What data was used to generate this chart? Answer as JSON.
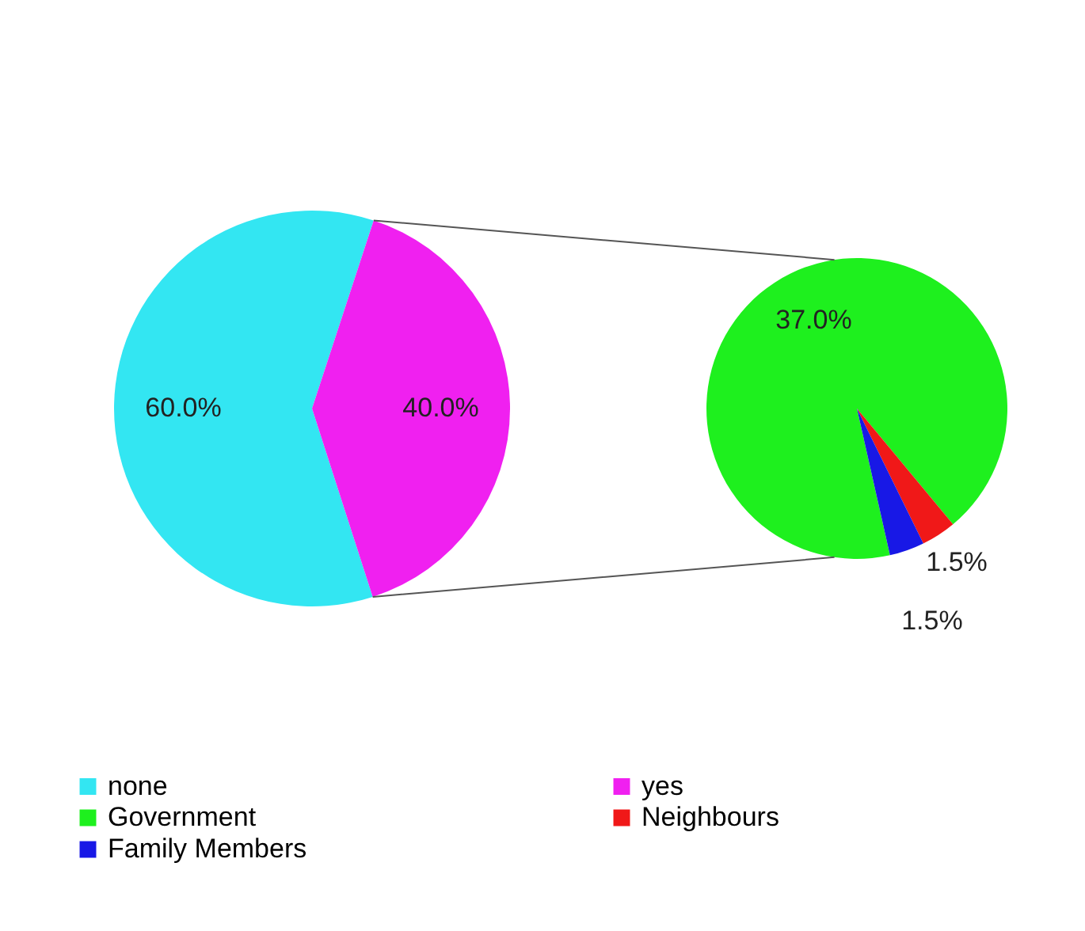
{
  "chart_data": [
    {
      "type": "pie",
      "categories": [
        "none",
        "yes"
      ],
      "values": [
        60,
        40
      ],
      "colors": [
        "#33e6f2",
        "#f020f0"
      ],
      "value_labels": [
        "60.0%",
        "40.0%"
      ],
      "legend": "bottom"
    },
    {
      "type": "pie",
      "categories": [
        "Government",
        "Neighbours",
        "Family Members"
      ],
      "values": [
        37,
        1.5,
        1.5
      ],
      "colors": [
        "#1ef01e",
        "#f01818",
        "#1818e6"
      ],
      "value_labels": [
        "37.0%",
        "1.5%",
        "1.5%"
      ],
      "legend": "bottom"
    }
  ]
}
